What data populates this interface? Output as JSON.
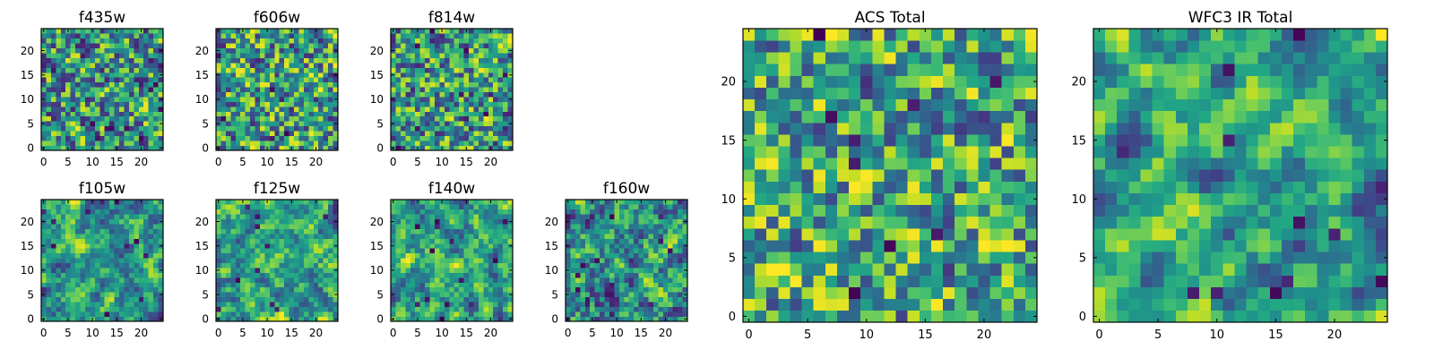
{
  "figure": {
    "colormap": "viridis",
    "background": "#ffffff",
    "frame_color": "#000000"
  },
  "chart_data": [
    {
      "id": "f435w",
      "type": "heatmap",
      "title": "f435w",
      "grid_size": 25,
      "xlim": [
        -0.5,
        24.5
      ],
      "ylim": [
        -0.5,
        24.5
      ],
      "xticks": [
        0,
        5,
        10,
        15,
        20
      ],
      "yticks": [
        0,
        5,
        10,
        15,
        20
      ],
      "xtick_labels": [
        "0",
        "5",
        "10",
        "15",
        "20"
      ],
      "ytick_labels": [
        "0",
        "5",
        "10",
        "15",
        "20"
      ],
      "seed": 11,
      "smooth": 0.2,
      "bias": 0.55,
      "dark_cells": 12
    },
    {
      "id": "f606w",
      "type": "heatmap",
      "title": "f606w",
      "grid_size": 25,
      "xlim": [
        -0.5,
        24.5
      ],
      "ylim": [
        -0.5,
        24.5
      ],
      "xticks": [
        0,
        5,
        10,
        15,
        20
      ],
      "yticks": [
        0,
        5,
        10,
        15,
        20
      ],
      "xtick_labels": [
        "0",
        "5",
        "10",
        "15",
        "20"
      ],
      "ytick_labels": [
        "0",
        "5",
        "10",
        "15",
        "20"
      ],
      "seed": 23,
      "smooth": 0.2,
      "bias": 0.62,
      "dark_cells": 8
    },
    {
      "id": "f814w",
      "type": "heatmap",
      "title": "f814w",
      "grid_size": 25,
      "xlim": [
        -0.5,
        24.5
      ],
      "ylim": [
        -0.5,
        24.5
      ],
      "xticks": [
        0,
        5,
        10,
        15,
        20
      ],
      "yticks": [
        0,
        5,
        10,
        15,
        20
      ],
      "xtick_labels": [
        "0",
        "5",
        "10",
        "15",
        "20"
      ],
      "ytick_labels": [
        "0",
        "5",
        "10",
        "15",
        "20"
      ],
      "seed": 37,
      "smooth": 0.2,
      "bias": 0.6,
      "dark_cells": 10
    },
    {
      "id": "f105w",
      "type": "heatmap",
      "title": "f105w",
      "grid_size": 25,
      "xlim": [
        -0.5,
        24.5
      ],
      "ylim": [
        -0.5,
        24.5
      ],
      "xticks": [
        0,
        5,
        10,
        15,
        20
      ],
      "yticks": [
        0,
        5,
        10,
        15,
        20
      ],
      "xtick_labels": [
        "0",
        "5",
        "10",
        "15",
        "20"
      ],
      "ytick_labels": [
        "0",
        "5",
        "10",
        "15",
        "20"
      ],
      "seed": 41,
      "smooth": 0.7,
      "bias": 0.6,
      "dark_cells": 10
    },
    {
      "id": "f125w",
      "type": "heatmap",
      "title": "f125w",
      "grid_size": 25,
      "xlim": [
        -0.5,
        24.5
      ],
      "ylim": [
        -0.5,
        24.5
      ],
      "xticks": [
        0,
        5,
        10,
        15,
        20
      ],
      "yticks": [
        0,
        5,
        10,
        15,
        20
      ],
      "xtick_labels": [
        "0",
        "5",
        "10",
        "15",
        "20"
      ],
      "ytick_labels": [
        "0",
        "5",
        "10",
        "15",
        "20"
      ],
      "seed": 53,
      "smooth": 0.7,
      "bias": 0.62,
      "dark_cells": 10
    },
    {
      "id": "f140w",
      "type": "heatmap",
      "title": "f140w",
      "grid_size": 25,
      "xlim": [
        -0.5,
        24.5
      ],
      "ylim": [
        -0.5,
        24.5
      ],
      "xticks": [
        0,
        5,
        10,
        15,
        20
      ],
      "yticks": [
        0,
        5,
        10,
        15,
        20
      ],
      "xtick_labels": [
        "0",
        "5",
        "10",
        "15",
        "20"
      ],
      "ytick_labels": [
        "0",
        "5",
        "10",
        "15",
        "20"
      ],
      "seed": 67,
      "smooth": 0.7,
      "bias": 0.6,
      "dark_cells": 12
    },
    {
      "id": "f160w",
      "type": "heatmap",
      "title": "f160w",
      "grid_size": 25,
      "xlim": [
        -0.5,
        24.5
      ],
      "ylim": [
        -0.5,
        24.5
      ],
      "xticks": [
        0,
        5,
        10,
        15,
        20
      ],
      "yticks": [
        0,
        5,
        10,
        15,
        20
      ],
      "xtick_labels": [
        "0",
        "5",
        "10",
        "15",
        "20"
      ],
      "ytick_labels": [
        "0",
        "5",
        "10",
        "15",
        "20"
      ],
      "seed": 79,
      "smooth": 0.6,
      "bias": 0.5,
      "dark_cells": 16
    },
    {
      "id": "acs-total",
      "type": "heatmap",
      "title": "ACS Total",
      "grid_size": 25,
      "xlim": [
        -0.5,
        24.5
      ],
      "ylim": [
        -0.5,
        24.5
      ],
      "xticks": [
        0,
        5,
        10,
        15,
        20
      ],
      "yticks": [
        0,
        5,
        10,
        15,
        20
      ],
      "xtick_labels": [
        "0",
        "5",
        "10",
        "15",
        "20"
      ],
      "ytick_labels": [
        "0",
        "5",
        "10",
        "15",
        "20"
      ],
      "seed": 97,
      "smooth": 0.3,
      "bias": 0.68,
      "dark_cells": 9
    },
    {
      "id": "wfc3-ir-total",
      "type": "heatmap",
      "title": "WFC3 IR Total",
      "grid_size": 25,
      "xlim": [
        -0.5,
        24.5
      ],
      "ylim": [
        -0.5,
        24.5
      ],
      "xticks": [
        0,
        5,
        10,
        15,
        20
      ],
      "yticks": [
        0,
        5,
        10,
        15,
        20
      ],
      "xtick_labels": [
        "0",
        "5",
        "10",
        "15",
        "20"
      ],
      "ytick_labels": [
        "0",
        "5",
        "10",
        "15",
        "20"
      ],
      "seed": 113,
      "smooth": 0.8,
      "bias": 0.6,
      "dark_cells": 12
    }
  ]
}
